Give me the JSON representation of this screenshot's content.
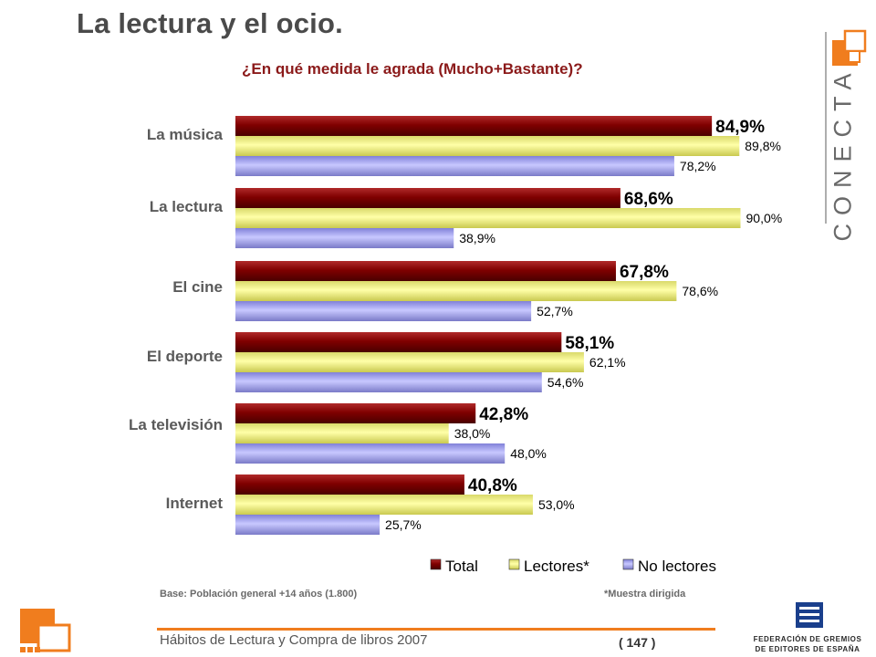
{
  "page": {
    "title": "La lectura y el ocio.",
    "subtitle": "¿En qué medida le agrada (Mucho+Bastante)?",
    "base_note": "Base: Población general +14 años (1.800)",
    "sample_note": "*Muestra dirigida",
    "footer_text": "Hábitos de Lectura y Compra de libros 2007",
    "page_number": "( 147 )",
    "brand_logo_text": "CONECTA",
    "federation_line1": "FEDERACIÓN DE GREMIOS",
    "federation_line2": "DE EDITORES DE ESPAÑA"
  },
  "colors": {
    "accent": "#f07d1e",
    "title": "#4a4a4a",
    "subtitle": "#8b1a1a",
    "federation_blue": "#1a3f8c"
  },
  "chart_data": {
    "type": "bar",
    "orientation": "horizontal",
    "title": "¿En qué medida le agrada (Mucho+Bastante)?",
    "categories": [
      "La música",
      "La lectura",
      "El cine",
      "El deporte",
      "La televisión",
      "Internet"
    ],
    "series": [
      {
        "name": "Total",
        "color": "#800000",
        "values": [
          84.9,
          68.6,
          67.8,
          58.1,
          42.8,
          40.8
        ],
        "labels": [
          "84,9%",
          "68,6%",
          "67,8%",
          "58,1%",
          "42,8%",
          "40,8%"
        ]
      },
      {
        "name": "Lectores*",
        "color": "#ffff99",
        "values": [
          89.8,
          90.0,
          78.6,
          62.1,
          38.0,
          53.0
        ],
        "labels": [
          "89,8%",
          "90,0%",
          "78,6%",
          "62,1%",
          "38,0%",
          "53,0%"
        ]
      },
      {
        "name": "No lectores",
        "color": "#9999ff",
        "values": [
          78.2,
          38.9,
          52.7,
          54.6,
          48.0,
          25.7
        ],
        "labels": [
          "78,2%",
          "38,9%",
          "52,7%",
          "54,6%",
          "48,0%",
          "25,7%"
        ]
      }
    ],
    "xlim": [
      0,
      100
    ],
    "xlabel": "",
    "ylabel": "",
    "grid": false,
    "legend_position": "bottom-right"
  }
}
